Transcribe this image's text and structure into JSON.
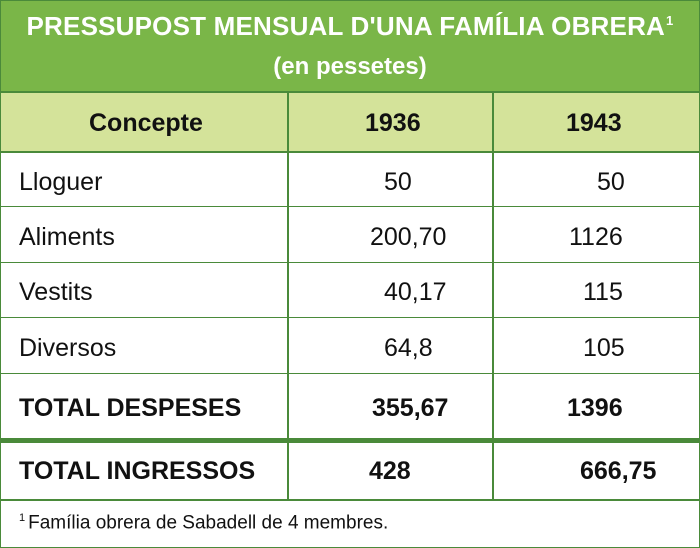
{
  "title": {
    "line1": "PRESSUPOST MENSUAL D'UNA FAMÍLIA OBRERA",
    "note_mark": "1",
    "line2": "(en pessetes)"
  },
  "columns": [
    "Concepte",
    "1936",
    "1943"
  ],
  "rows": [
    {
      "concept": "Lloguer",
      "y1936": "50",
      "y1943": "50"
    },
    {
      "concept": "Aliments",
      "y1936": "200,70",
      "y1943": "1126"
    },
    {
      "concept": "Vestits",
      "y1936": "40,17",
      "y1943": "115"
    },
    {
      "concept": "Diversos",
      "y1936": "64,8",
      "y1943": "105"
    }
  ],
  "total_despeses": {
    "concept": "TOTAL DESPESES",
    "y1936": "355,67",
    "y1943": "1396"
  },
  "total_ingressos": {
    "concept": "TOTAL INGRESSOS",
    "y1936": "428",
    "y1943": "666,75"
  },
  "footnote": {
    "mark": "1",
    "text": "Família obrera de Sabadell de 4 membres."
  },
  "colors": {
    "header_green": "#7ab648",
    "subheader_green": "#d4e39a",
    "border_green": "#4a8a3a"
  }
}
